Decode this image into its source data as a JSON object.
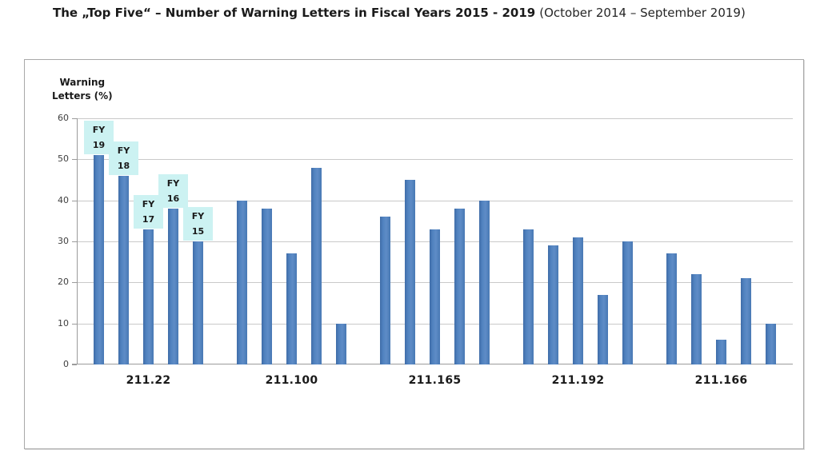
{
  "title": {
    "main": "The „Top Five“ – Number of Warning Letters in Fiscal Years 2015 - 2019",
    "sub": "(October 2014 – September 2019)"
  },
  "chart_data": {
    "type": "bar",
    "title": "The „Top Five“ – Number of Warning Letters in Fiscal Years 2015 - 2019 (October 2014 – September 2019)",
    "ylabel": "Warning Letters (%)",
    "ylabel_line1": "Warning",
    "ylabel_line2": "Letters (%)",
    "xlabel": "",
    "ylim": [
      0,
      60
    ],
    "yticks": [
      0,
      10,
      20,
      30,
      40,
      50,
      60
    ],
    "grid": true,
    "legend_position": "cyan label boxes above the bars of the first category group",
    "categories": [
      "211.22",
      "211.100",
      "211.165",
      "211.192",
      "211.166"
    ],
    "series": [
      {
        "name": "FY 19",
        "values": [
          51,
          40,
          36,
          33,
          27
        ]
      },
      {
        "name": "FY 18",
        "values": [
          46,
          38,
          45,
          29,
          22
        ]
      },
      {
        "name": "FY 17",
        "values": [
          33,
          27,
          33,
          31,
          6
        ]
      },
      {
        "name": "FY 16",
        "values": [
          38,
          48,
          38,
          17,
          21
        ]
      },
      {
        "name": "FY 15",
        "values": [
          30,
          10,
          40,
          30,
          10
        ]
      }
    ],
    "annotations": [
      {
        "line1": "FY",
        "line2": "19"
      },
      {
        "line1": "FY",
        "line2": "18"
      },
      {
        "line1": "FY",
        "line2": "17"
      },
      {
        "line1": "FY",
        "line2": "16"
      },
      {
        "line1": "FY",
        "line2": "15"
      }
    ],
    "colors": {
      "bar": "#4f81bd",
      "annotation_box_bg": "#ccf2f2",
      "annotation_text": "#1a1a1a",
      "gridline": "#c9c9c9",
      "axis_line": "#9b9b9b",
      "tick_label": "#3f3f3f",
      "category_label": "#1a1a1a",
      "frame_border": "#a9a9a9",
      "title_text": "#1a1a1a"
    }
  }
}
